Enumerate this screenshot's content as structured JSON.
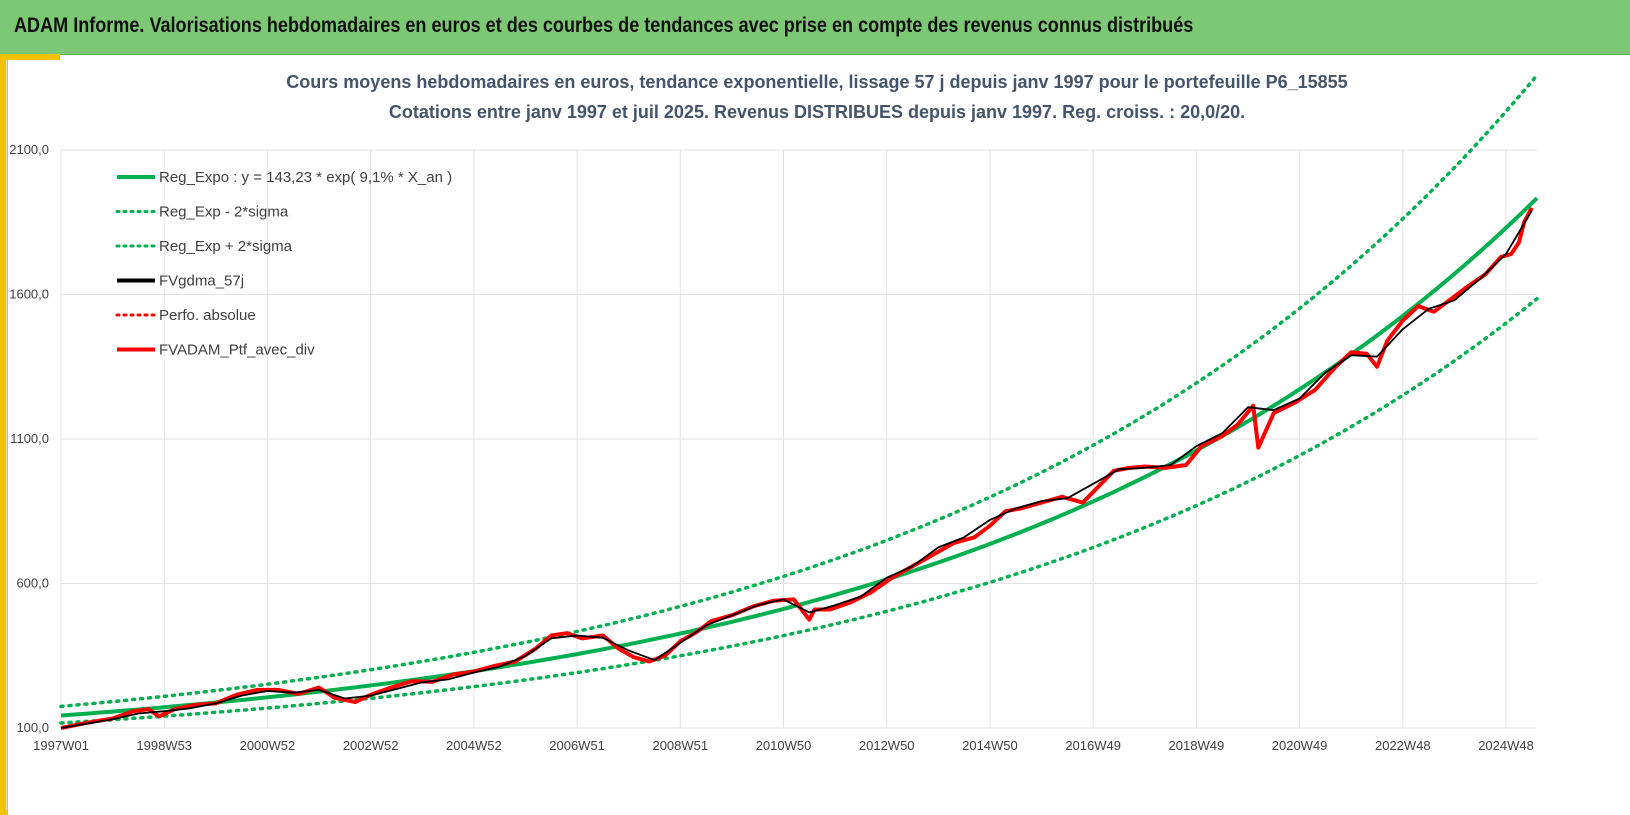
{
  "header": {
    "title": "ADAM Informe. Valorisations hebdomadaires en euros et des courbes de tendances avec prise en compte des revenus connus distribués"
  },
  "colors": {
    "header_bg": "#7dc874",
    "accent": "#f5c200",
    "trend": "#00b050",
    "smoothed": "#000000",
    "portfolio": "#ff0000"
  },
  "chart_data": {
    "type": "line",
    "title_line1": "Cours moyens hebdomadaires  en euros, tendance exponentielle, lissage 57 j depuis janv 1997 pour le portefeuille P6_15855",
    "title_line2": "Cotations entre janv 1997 et juil 2025. Revenus DISTRIBUES depuis janv 1997. Reg. croiss. : 20,0/20.",
    "xlabel": "",
    "ylabel": "",
    "ylim": [
      100,
      2100
    ],
    "xlim": [
      1997.0,
      2025.6
    ],
    "y_ticks": [
      {
        "value": 100,
        "label": "100,0"
      },
      {
        "value": 600,
        "label": "600,0"
      },
      {
        "value": 1100,
        "label": "1100,0"
      },
      {
        "value": 1600,
        "label": "1600,0"
      },
      {
        "value": 2100,
        "label": "2100,0"
      }
    ],
    "x_ticks": [
      {
        "value": 1997.0,
        "label": "1997W01"
      },
      {
        "value": 1999.0,
        "label": "1998W53"
      },
      {
        "value": 2001.0,
        "label": "2000W52"
      },
      {
        "value": 2003.0,
        "label": "2002W52"
      },
      {
        "value": 2005.0,
        "label": "2004W52"
      },
      {
        "value": 2007.0,
        "label": "2006W51"
      },
      {
        "value": 2009.0,
        "label": "2008W51"
      },
      {
        "value": 2011.0,
        "label": "2010W50"
      },
      {
        "value": 2013.0,
        "label": "2012W50"
      },
      {
        "value": 2015.0,
        "label": "2014W50"
      },
      {
        "value": 2017.0,
        "label": "2016W49"
      },
      {
        "value": 2019.0,
        "label": "2018W49"
      },
      {
        "value": 2021.0,
        "label": "2020W49"
      },
      {
        "value": 2023.0,
        "label": "2022W48"
      },
      {
        "value": 2025.0,
        "label": "2024W48"
      }
    ],
    "legend_position": "top-left",
    "grid": true,
    "trend": {
      "name": "Reg_Expo : y = 143,23 * exp( 9,1% *  X_an )",
      "a": 143.23,
      "rate": 0.091,
      "band_factor_upper": 1.22,
      "band_factor_lower": 0.82
    },
    "series": [
      {
        "name": "Reg_Expo : y = 143,23 * exp( 9,1% *  X_an )",
        "color": "#00b050",
        "style": "solid",
        "kind": "trend"
      },
      {
        "name": "Reg_Exp - 2*sigma",
        "color": "#00b050",
        "style": "dotted",
        "kind": "lower"
      },
      {
        "name": "Reg_Exp + 2*sigma",
        "color": "#00b050",
        "style": "dotted",
        "kind": "upper"
      },
      {
        "name": "FVgdma_57j",
        "color": "#000000",
        "style": "solid",
        "kind": "smoothed"
      },
      {
        "name": "Perfo. absolue",
        "color": "#ff0000",
        "style": "dotted",
        "kind": "legend-only"
      },
      {
        "name": "FVADAM_Ptf_avec_div",
        "color": "#ff0000",
        "style": "solid",
        "kind": "portfolio"
      }
    ],
    "portfolio_points": {
      "x": [
        1997.0,
        1997.5,
        1998.0,
        1998.4,
        1998.7,
        1998.9,
        1999.2,
        1999.6,
        2000.0,
        2000.4,
        2000.8,
        2001.2,
        2001.6,
        2002.0,
        2002.3,
        2002.7,
        2003.0,
        2003.4,
        2003.8,
        2004.2,
        2004.6,
        2005.0,
        2005.4,
        2005.8,
        2006.2,
        2006.5,
        2006.8,
        2007.1,
        2007.5,
        2007.8,
        2008.1,
        2008.4,
        2008.7,
        2009.0,
        2009.3,
        2009.6,
        2010.0,
        2010.4,
        2010.8,
        2011.2,
        2011.5,
        2011.6,
        2011.9,
        2012.3,
        2012.7,
        2013.1,
        2013.5,
        2013.9,
        2014.3,
        2014.7,
        2015.0,
        2015.3,
        2015.6,
        2016.0,
        2016.4,
        2016.8,
        2017.1,
        2017.4,
        2017.7,
        2018.0,
        2018.4,
        2018.8,
        2019.1,
        2019.5,
        2019.8,
        2020.1,
        2020.2,
        2020.5,
        2020.9,
        2021.3,
        2021.7,
        2022.0,
        2022.3,
        2022.5,
        2022.7,
        2023.0,
        2023.3,
        2023.6,
        2023.9,
        2024.2,
        2024.6,
        2024.9,
        2025.1,
        2025.25,
        2025.35,
        2025.5
      ],
      "y": [
        100,
        118,
        133,
        158,
        165,
        140,
        165,
        180,
        185,
        215,
        232,
        232,
        218,
        240,
        205,
        190,
        215,
        240,
        262,
        260,
        285,
        295,
        315,
        330,
        375,
        420,
        428,
        410,
        420,
        375,
        345,
        330,
        350,
        400,
        430,
        470,
        490,
        520,
        540,
        545,
        475,
        510,
        510,
        535,
        570,
        620,
        660,
        700,
        740,
        760,
        800,
        850,
        860,
        880,
        900,
        880,
        935,
        990,
        1000,
        1005,
        1000,
        1010,
        1075,
        1110,
        1150,
        1215,
        1070,
        1190,
        1225,
        1270,
        1350,
        1400,
        1395,
        1350,
        1440,
        1510,
        1560,
        1540,
        1580,
        1620,
        1670,
        1730,
        1740,
        1780,
        1850,
        1900
      ]
    },
    "smoothed_points": {
      "x": [
        1997.0,
        1997.5,
        1998.0,
        1998.5,
        1999.0,
        1999.5,
        2000.0,
        2000.5,
        2001.0,
        2001.5,
        2002.0,
        2002.5,
        2003.0,
        2003.5,
        2004.0,
        2004.5,
        2005.0,
        2005.5,
        2006.0,
        2006.5,
        2007.0,
        2007.5,
        2008.0,
        2008.5,
        2009.0,
        2009.5,
        2010.0,
        2010.5,
        2011.0,
        2011.5,
        2012.0,
        2012.5,
        2013.0,
        2013.5,
        2014.0,
        2014.5,
        2015.0,
        2015.5,
        2016.0,
        2016.5,
        2017.0,
        2017.5,
        2018.0,
        2018.5,
        2019.0,
        2019.5,
        2020.0,
        2020.5,
        2021.0,
        2021.5,
        2022.0,
        2022.5,
        2023.0,
        2023.5,
        2024.0,
        2024.5,
        2025.0,
        2025.5
      ],
      "y": [
        100,
        115,
        130,
        150,
        158,
        168,
        185,
        212,
        228,
        222,
        232,
        202,
        212,
        235,
        258,
        268,
        292,
        312,
        350,
        410,
        420,
        412,
        368,
        335,
        395,
        455,
        490,
        525,
        545,
        500,
        525,
        555,
        620,
        660,
        725,
        760,
        820,
        860,
        885,
        895,
        945,
        995,
        1000,
        1010,
        1075,
        1120,
        1210,
        1200,
        1240,
        1330,
        1390,
        1385,
        1480,
        1550,
        1580,
        1655,
        1740,
        1890
      ]
    }
  }
}
